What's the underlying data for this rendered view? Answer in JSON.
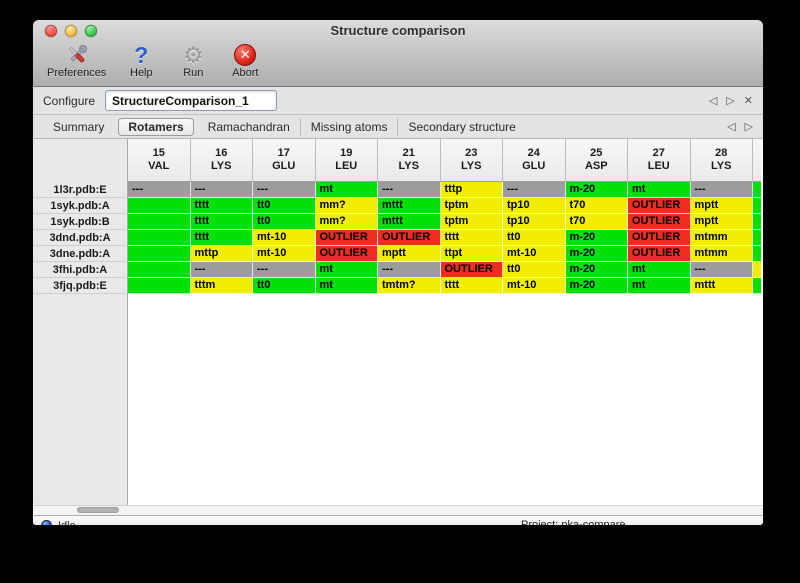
{
  "window": {
    "title": "Structure comparison"
  },
  "toolbar": {
    "items": [
      {
        "label": "Preferences",
        "icon": "tools-icon"
      },
      {
        "label": "Help",
        "icon": "help-icon",
        "glyph": "?"
      },
      {
        "label": "Run",
        "icon": "gear-icon",
        "glyph": "⚙"
      },
      {
        "label": "Abort",
        "icon": "abort-icon",
        "glyph": "✕"
      }
    ]
  },
  "configure": {
    "label": "Configure",
    "value": "StructureComparison_1",
    "prev": "◁",
    "next": "▷",
    "close": "✕"
  },
  "tabs": {
    "items": [
      "Summary",
      "Rotamers",
      "Ramachandran",
      "Missing atoms",
      "Secondary structure"
    ],
    "selected": "Rotamers",
    "prev": "◁",
    "next": "▷"
  },
  "colors": {
    "green": "#00e005",
    "yellow": "#f1ed00",
    "red": "#ee2d1e",
    "gray": "#9c9c9c"
  },
  "table": {
    "columns": [
      {
        "num": "15",
        "res": "VAL"
      },
      {
        "num": "16",
        "res": "LYS"
      },
      {
        "num": "17",
        "res": "GLU"
      },
      {
        "num": "19",
        "res": "LEU"
      },
      {
        "num": "21",
        "res": "LYS"
      },
      {
        "num": "23",
        "res": "LYS"
      },
      {
        "num": "24",
        "res": "GLU"
      },
      {
        "num": "25",
        "res": "ASP"
      },
      {
        "num": "27",
        "res": "LEU"
      },
      {
        "num": "28",
        "res": "LYS"
      }
    ],
    "rows": [
      {
        "label": "1l3r.pdb:E",
        "cells": [
          {
            "t": "---",
            "c": "gray"
          },
          {
            "t": "---",
            "c": "gray"
          },
          {
            "t": "---",
            "c": "gray"
          },
          {
            "t": "mt",
            "c": "green"
          },
          {
            "t": "---",
            "c": "gray"
          },
          {
            "t": "tttp",
            "c": "yellow"
          },
          {
            "t": "---",
            "c": "gray"
          },
          {
            "t": "m-20",
            "c": "green"
          },
          {
            "t": "mt",
            "c": "green"
          },
          {
            "t": "---",
            "c": "gray"
          }
        ],
        "partial": "green"
      },
      {
        "label": "1syk.pdb:A",
        "cells": [
          {
            "t": "",
            "c": "green"
          },
          {
            "t": "tttt",
            "c": "green"
          },
          {
            "t": "tt0",
            "c": "green"
          },
          {
            "t": "mm?",
            "c": "yellow"
          },
          {
            "t": "mttt",
            "c": "green"
          },
          {
            "t": "tptm",
            "c": "yellow"
          },
          {
            "t": "tp10",
            "c": "yellow"
          },
          {
            "t": "t70",
            "c": "yellow"
          },
          {
            "t": "OUTLIER",
            "c": "red"
          },
          {
            "t": "mptt",
            "c": "yellow"
          }
        ],
        "partial": "green"
      },
      {
        "label": "1syk.pdb:B",
        "cells": [
          {
            "t": "",
            "c": "green"
          },
          {
            "t": "tttt",
            "c": "green"
          },
          {
            "t": "tt0",
            "c": "green"
          },
          {
            "t": "mm?",
            "c": "yellow"
          },
          {
            "t": "mttt",
            "c": "green"
          },
          {
            "t": "tptm",
            "c": "yellow"
          },
          {
            "t": "tp10",
            "c": "yellow"
          },
          {
            "t": "t70",
            "c": "yellow"
          },
          {
            "t": "OUTLIER",
            "c": "red"
          },
          {
            "t": "mptt",
            "c": "yellow"
          }
        ],
        "partial": "green"
      },
      {
        "label": "3dnd.pdb:A",
        "cells": [
          {
            "t": "",
            "c": "green"
          },
          {
            "t": "tttt",
            "c": "green"
          },
          {
            "t": "mt-10",
            "c": "yellow"
          },
          {
            "t": "OUTLIER",
            "c": "red"
          },
          {
            "t": "OUTLIER",
            "c": "red"
          },
          {
            "t": "tttt",
            "c": "yellow"
          },
          {
            "t": "tt0",
            "c": "yellow"
          },
          {
            "t": "m-20",
            "c": "green"
          },
          {
            "t": "OUTLIER",
            "c": "red"
          },
          {
            "t": "mtmm",
            "c": "yellow"
          }
        ],
        "partial": "green"
      },
      {
        "label": "3dne.pdb:A",
        "cells": [
          {
            "t": "",
            "c": "green"
          },
          {
            "t": "mttp",
            "c": "yellow"
          },
          {
            "t": "mt-10",
            "c": "yellow"
          },
          {
            "t": "OUTLIER",
            "c": "red"
          },
          {
            "t": "mptt",
            "c": "yellow"
          },
          {
            "t": "ttpt",
            "c": "yellow"
          },
          {
            "t": "mt-10",
            "c": "yellow"
          },
          {
            "t": "m-20",
            "c": "green"
          },
          {
            "t": "OUTLIER",
            "c": "red"
          },
          {
            "t": "mtmm",
            "c": "yellow"
          }
        ],
        "partial": "green"
      },
      {
        "label": "3fhi.pdb:A",
        "cells": [
          {
            "t": "",
            "c": "green"
          },
          {
            "t": "---",
            "c": "gray"
          },
          {
            "t": "---",
            "c": "gray"
          },
          {
            "t": "mt",
            "c": "green"
          },
          {
            "t": "---",
            "c": "gray"
          },
          {
            "t": "OUTLIER",
            "c": "red"
          },
          {
            "t": "tt0",
            "c": "yellow"
          },
          {
            "t": "m-20",
            "c": "green"
          },
          {
            "t": "mt",
            "c": "green"
          },
          {
            "t": "---",
            "c": "gray"
          }
        ],
        "partial": "yellow"
      },
      {
        "label": "3fjq.pdb:E",
        "cells": [
          {
            "t": "",
            "c": "green"
          },
          {
            "t": "tttm",
            "c": "yellow"
          },
          {
            "t": "tt0",
            "c": "green"
          },
          {
            "t": "mt",
            "c": "green"
          },
          {
            "t": "tmtm?",
            "c": "yellow"
          },
          {
            "t": "tttt",
            "c": "yellow"
          },
          {
            "t": "mt-10",
            "c": "yellow"
          },
          {
            "t": "m-20",
            "c": "green"
          },
          {
            "t": "mt",
            "c": "green"
          },
          {
            "t": "mttt",
            "c": "yellow"
          }
        ],
        "partial": "green"
      }
    ]
  },
  "status": {
    "state": "Idle",
    "project": "Project: pka-compare"
  }
}
